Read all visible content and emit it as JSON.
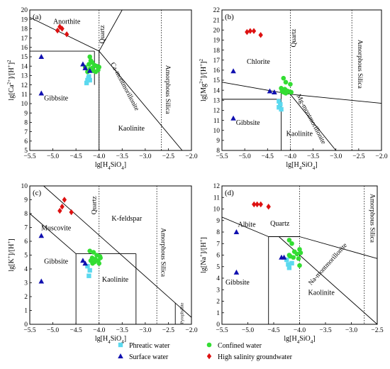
{
  "legend": [
    {
      "label": "Phreatic water",
      "marker": "square",
      "color": "#5bd9ef"
    },
    {
      "label": "Confined water",
      "marker": "circle",
      "color": "#33dd33"
    },
    {
      "label": "Surface water",
      "marker": "triangle",
      "color": "#1010b0"
    },
    {
      "label": "High salinity groundwater",
      "marker": "diamond",
      "color": "#dd1111"
    }
  ],
  "chart_data": [
    {
      "type": "scatter",
      "panel_label": "(a)",
      "xlabel": "lg[H4SiO4]",
      "ylabel": "lg[Ca2+]/[H+]2",
      "xlim": [
        -5.5,
        -2.0
      ],
      "ylim": [
        5,
        20
      ],
      "xticks": [
        "-5.5",
        "-5.0",
        "-4.5",
        "-4.0",
        "-3.5",
        "-3.0",
        "-2.5",
        "-2.0"
      ],
      "yticks": [
        "5",
        "6",
        "7",
        "8",
        "9",
        "10",
        "11",
        "12",
        "13",
        "14",
        "15",
        "16",
        "17",
        "18",
        "19",
        "20"
      ],
      "reference_lines": [
        {
          "label": "Quartz",
          "x": -4.0
        },
        {
          "label": "Amorphous Silica",
          "x": -2.65
        }
      ],
      "boundaries": [
        [
          [
            -5.5,
            19.2
          ],
          [
            -4.0,
            15.6
          ]
        ],
        [
          [
            -4.0,
            15.6
          ],
          [
            -3.5,
            20.0
          ]
        ],
        [
          [
            -4.0,
            15.6
          ],
          [
            -4.0,
            5.0
          ]
        ],
        [
          [
            -5.5,
            15.6
          ],
          [
            -4.1,
            15.6
          ]
        ],
        [
          [
            -4.1,
            15.6
          ],
          [
            -4.1,
            12.0
          ]
        ],
        [
          [
            -4.0,
            15.6
          ],
          [
            -2.2,
            5.0
          ]
        ]
      ],
      "fields": [
        {
          "label": "Anorthite",
          "x": -4.7,
          "y": 18.7,
          "rotate": 0
        },
        {
          "label": "Gibbsite",
          "x": -4.93,
          "y": 10.5,
          "rotate": 0
        },
        {
          "label": "Kaolinite",
          "x": -3.3,
          "y": 7.3,
          "rotate": 0
        },
        {
          "label": "Ca-montmorillonite",
          "x": -3.45,
          "y": 11.8,
          "rotate": 62
        },
        {
          "label": "Amorphous Silica",
          "x": -2.52,
          "y": 11.5,
          "rotate": 90
        },
        {
          "label": "Quartz",
          "x": -3.92,
          "y": 17.4,
          "rotate": -90
        }
      ],
      "series": [
        {
          "name": "Phreatic water",
          "points": [
            [
              -4.22,
              12.9
            ],
            [
              -4.25,
              12.5
            ],
            [
              -4.27,
              12.2
            ],
            [
              -4.2,
              12.5
            ],
            [
              -4.23,
              12.7
            ]
          ]
        },
        {
          "name": "Confined water",
          "points": [
            [
              -4.2,
              15.0
            ],
            [
              -4.15,
              14.4
            ],
            [
              -4.22,
              14.2
            ],
            [
              -4.1,
              14.1
            ],
            [
              -4.05,
              14.0
            ],
            [
              -4.0,
              13.9
            ],
            [
              -4.15,
              13.8
            ],
            [
              -4.2,
              13.7
            ],
            [
              -4.02,
              13.6
            ],
            [
              -4.12,
              13.5
            ],
            [
              -4.25,
              13.4
            ],
            [
              -4.07,
              13.4
            ],
            [
              -4.3,
              13.9
            ],
            [
              -4.18,
              14.6
            ]
          ]
        },
        {
          "name": "Surface water",
          "points": [
            [
              -5.25,
              15.0
            ],
            [
              -5.25,
              11.1
            ],
            [
              -4.35,
              14.2
            ],
            [
              -4.3,
              13.8
            ],
            [
              -4.2,
              13.5
            ]
          ]
        },
        {
          "name": "High salinity groundwater",
          "points": [
            [
              -4.85,
              18.2
            ],
            [
              -4.8,
              18.0
            ],
            [
              -4.9,
              17.8
            ],
            [
              -4.7,
              17.4
            ]
          ]
        }
      ]
    },
    {
      "type": "scatter",
      "panel_label": "(b)",
      "xlabel": "lg[H4SiO4]",
      "ylabel": "lg[Mg2+]/[H+]2",
      "xlim": [
        -5.5,
        -2.0
      ],
      "ylim": [
        8,
        22
      ],
      "xticks": [
        "-5.5",
        "-5.0",
        "-4.5",
        "-4.0",
        "-3.5",
        "-3.0",
        "-2.5",
        "-2.0"
      ],
      "yticks": [
        "8",
        "9",
        "10",
        "11",
        "12",
        "13",
        "14",
        "15",
        "16",
        "17",
        "18",
        "19",
        "20",
        "21",
        "22"
      ],
      "reference_lines": [
        {
          "label": "Quartz",
          "x": -4.0
        },
        {
          "label": "Amorphous Silica",
          "x": -2.65
        }
      ],
      "boundaries": [
        [
          [
            -5.5,
            14.8
          ],
          [
            -4.0,
            13.6
          ]
        ],
        [
          [
            -4.0,
            13.6
          ],
          [
            -2.0,
            12.7
          ]
        ],
        [
          [
            -4.2,
            13.7
          ],
          [
            -4.2,
            8.0
          ]
        ],
        [
          [
            -4.0,
            13.6
          ],
          [
            -3.0,
            8.0
          ]
        ],
        [
          [
            -5.5,
            13.1
          ],
          [
            -4.2,
            13.1
          ]
        ]
      ],
      "fields": [
        {
          "label": "Chlorite",
          "x": -4.7,
          "y": 16.8,
          "rotate": 0
        },
        {
          "label": "Gibbsite",
          "x": -4.93,
          "y": 10.7,
          "rotate": 0
        },
        {
          "label": "Kaolinite",
          "x": -3.8,
          "y": 9.6,
          "rotate": 0
        },
        {
          "label": "Mg-montmorillonite",
          "x": -3.55,
          "y": 11.1,
          "rotate": 62
        },
        {
          "label": "Amorphous Silica",
          "x": -2.48,
          "y": 16.6,
          "rotate": 90
        },
        {
          "label": "Quartz",
          "x": -3.92,
          "y": 19.2,
          "rotate": -90
        }
      ],
      "series": [
        {
          "name": "Phreatic water",
          "points": [
            [
              -4.25,
              12.9
            ],
            [
              -4.22,
              12.6
            ],
            [
              -4.25,
              12.3
            ],
            [
              -4.2,
              12.1
            ]
          ]
        },
        {
          "name": "Confined water",
          "points": [
            [
              -4.15,
              15.2
            ],
            [
              -4.1,
              14.8
            ],
            [
              -4.0,
              14.6
            ],
            [
              -4.2,
              14.2
            ],
            [
              -4.1,
              14.0
            ],
            [
              -4.05,
              13.9
            ],
            [
              -4.0,
              13.8
            ],
            [
              -4.15,
              13.8
            ],
            [
              -4.1,
              13.7
            ],
            [
              -3.98,
              13.8
            ],
            [
              -4.12,
              14.1
            ],
            [
              -4.18,
              13.9
            ]
          ]
        },
        {
          "name": "Surface water",
          "points": [
            [
              -5.25,
              15.9
            ],
            [
              -5.25,
              11.2
            ],
            [
              -4.45,
              13.9
            ],
            [
              -4.35,
              13.8
            ]
          ]
        },
        {
          "name": "High salinity groundwater",
          "points": [
            [
              -4.95,
              19.8
            ],
            [
              -4.88,
              19.9
            ],
            [
              -4.8,
              19.9
            ],
            [
              -4.65,
              19.5
            ]
          ]
        }
      ]
    },
    {
      "type": "scatter",
      "panel_label": "(c)",
      "xlabel": "lg[H4SiO4]",
      "ylabel": "lg[K+]/[H+]",
      "xlim": [
        -5.5,
        -2.0
      ],
      "ylim": [
        0,
        10
      ],
      "xticks": [
        "-5.5",
        "-5.0",
        "-4.5",
        "-4.0",
        "-3.5",
        "-3.0",
        "-2.5",
        "-2.0"
      ],
      "yticks": [
        "0",
        "1",
        "2",
        "3",
        "4",
        "5",
        "6",
        "7",
        "8",
        "9",
        "10"
      ],
      "reference_lines": [
        {
          "label": "Quartz",
          "x": -4.0
        },
        {
          "label": "Amorphous Silica",
          "x": -2.75
        }
      ],
      "boundaries": [
        [
          [
            -5.5,
            8.0
          ],
          [
            -4.5,
            5.1
          ]
        ],
        [
          [
            -4.5,
            5.1
          ],
          [
            -4.5,
            0.0
          ]
        ],
        [
          [
            -4.5,
            5.1
          ],
          [
            -3.2,
            5.1
          ]
        ],
        [
          [
            -3.2,
            5.1
          ],
          [
            -3.2,
            0.0
          ]
        ],
        [
          [
            -5.2,
            10.0
          ],
          [
            -2.0,
            0.5
          ]
        ],
        [
          [
            -2.35,
            1.55
          ],
          [
            -2.35,
            0.0
          ]
        ]
      ],
      "fields": [
        {
          "label": "Muscovite",
          "x": -4.93,
          "y": 6.9,
          "rotate": 0
        },
        {
          "label": "K-feldspar",
          "x": -3.4,
          "y": 7.6,
          "rotate": 0
        },
        {
          "label": "Gibbsite",
          "x": -4.93,
          "y": 4.5,
          "rotate": 0
        },
        {
          "label": "Kaolinite",
          "x": -3.65,
          "y": 3.2,
          "rotate": 0
        },
        {
          "label": "Amorphous Silica",
          "x": -2.62,
          "y": 5.2,
          "rotate": 90
        },
        {
          "label": "Quartz",
          "x": -4.1,
          "y": 8.6,
          "rotate": -90
        },
        {
          "label": "Pyrophyllite",
          "x": -2.2,
          "y": 0.8,
          "rotate": -90
        }
      ],
      "series": [
        {
          "name": "Phreatic water",
          "points": [
            [
              -4.25,
              4.2
            ],
            [
              -4.2,
              3.9
            ],
            [
              -4.22,
              3.5
            ]
          ]
        },
        {
          "name": "Confined water",
          "points": [
            [
              -4.2,
              5.3
            ],
            [
              -4.12,
              5.2
            ],
            [
              -4.05,
              5.0
            ],
            [
              -3.98,
              4.9
            ],
            [
              -4.15,
              4.8
            ],
            [
              -4.08,
              4.7
            ],
            [
              -4.02,
              4.6
            ],
            [
              -4.18,
              4.6
            ],
            [
              -4.1,
              4.5
            ],
            [
              -4.0,
              4.4
            ],
            [
              -3.97,
              4.8
            ],
            [
              -4.14,
              4.4
            ]
          ]
        },
        {
          "name": "Surface water",
          "points": [
            [
              -5.25,
              6.4
            ],
            [
              -5.25,
              3.1
            ],
            [
              -4.35,
              4.6
            ],
            [
              -4.3,
              4.4
            ]
          ]
        },
        {
          "name": "High salinity groundwater",
          "points": [
            [
              -4.75,
              9.0
            ],
            [
              -4.8,
              8.5
            ],
            [
              -4.85,
              8.2
            ],
            [
              -4.6,
              8.1
            ]
          ]
        }
      ]
    },
    {
      "type": "scatter",
      "panel_label": "(d)",
      "xlabel": "lg[H4SiO4]",
      "ylabel": "lg[Na+]/[H+]",
      "xlim": [
        -5.5,
        -2.5
      ],
      "ylim": [
        0,
        12
      ],
      "xticks": [
        "-5.5",
        "-5.0",
        "-4.5",
        "-4.0",
        "-3.5",
        "-3.0",
        "-2.5"
      ],
      "yticks": [
        "0",
        "1",
        "2",
        "3",
        "4",
        "5",
        "6",
        "7",
        "8",
        "9",
        "10",
        "11",
        "12"
      ],
      "reference_lines": [
        {
          "label": "Quartz",
          "x": -4.0
        },
        {
          "label": "Amorphous Silica",
          "x": -2.75
        }
      ],
      "boundaries": [
        [
          [
            -5.5,
            9.3
          ],
          [
            -4.6,
            7.6
          ]
        ],
        [
          [
            -4.6,
            7.6
          ],
          [
            -4.6,
            0.0
          ]
        ],
        [
          [
            -4.6,
            7.6
          ],
          [
            -4.0,
            7.6
          ]
        ],
        [
          [
            -4.0,
            7.6
          ],
          [
            -2.5,
            5.7
          ]
        ],
        [
          [
            -4.4,
            7.6
          ],
          [
            -2.5,
            0.0
          ]
        ]
      ],
      "fields": [
        {
          "label": "Albite",
          "x": -5.02,
          "y": 8.6,
          "rotate": 0
        },
        {
          "label": "Gibbsite",
          "x": -5.2,
          "y": 3.6,
          "rotate": 0
        },
        {
          "label": "Quartz",
          "x": -4.38,
          "y": 8.7,
          "rotate": 0
        },
        {
          "label": "Kaolinite",
          "x": -3.58,
          "y": 2.7,
          "rotate": 0
        },
        {
          "label": "Na-montmorillonite",
          "x": -3.45,
          "y": 5.2,
          "rotate": -48
        },
        {
          "label": "Amorphous Silica",
          "x": -2.6,
          "y": 9.2,
          "rotate": 90
        }
      ],
      "series": [
        {
          "name": "Phreatic water",
          "points": [
            [
              -4.25,
              5.6
            ],
            [
              -4.22,
              5.2
            ],
            [
              -4.2,
              4.9
            ],
            [
              -4.15,
              5.3
            ]
          ]
        },
        {
          "name": "Confined water",
          "points": [
            [
              -4.2,
              7.3
            ],
            [
              -4.15,
              7.0
            ],
            [
              -4.0,
              6.5
            ],
            [
              -4.1,
              6.3
            ],
            [
              -4.05,
              6.1
            ],
            [
              -4.2,
              6.0
            ],
            [
              -3.98,
              6.2
            ],
            [
              -4.12,
              5.8
            ],
            [
              -4.02,
              5.7
            ],
            [
              -4.18,
              5.9
            ],
            [
              -4.0,
              5.1
            ]
          ]
        },
        {
          "name": "Surface water",
          "points": [
            [
              -5.22,
              8.0
            ],
            [
              -5.22,
              4.5
            ],
            [
              -4.35,
              5.8
            ],
            [
              -4.3,
              5.8
            ]
          ]
        },
        {
          "name": "High salinity groundwater",
          "points": [
            [
              -4.88,
              10.4
            ],
            [
              -4.82,
              10.4
            ],
            [
              -4.75,
              10.4
            ],
            [
              -4.6,
              10.2
            ]
          ]
        }
      ]
    }
  ]
}
